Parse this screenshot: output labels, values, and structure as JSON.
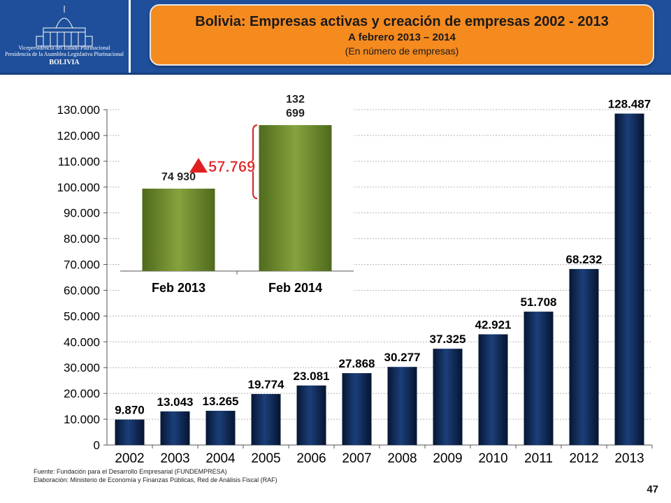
{
  "header": {
    "logo_line1": "Vicepresidencia del Estado Plurinacional",
    "logo_line2": "Presidencia de la Asamblea Legislativa Plurinacional",
    "logo_country": "BOLIVIA",
    "title": "Bolivia: Empresas activas y creación de empresas 2002 - 2013",
    "subtitle": "A febrero 2013 – 2014",
    "unit": "(En número de empresas)"
  },
  "chart_data": [
    {
      "type": "bar",
      "categories": [
        "2002",
        "2003",
        "2004",
        "2005",
        "2006",
        "2007",
        "2008",
        "2009",
        "2010",
        "2011",
        "2012",
        "2013"
      ],
      "values": [
        9870,
        13043,
        13265,
        19774,
        23081,
        27868,
        30277,
        37325,
        42921,
        51708,
        68232,
        128487
      ],
      "labels": [
        "9.870",
        "13.043",
        "13.265",
        "19.774",
        "23.081",
        "27.868",
        "30.277",
        "37.325",
        "42.921",
        "51.708",
        "68.232",
        "128.487"
      ],
      "ylim": [
        0,
        130000
      ],
      "yticks": [
        "0",
        "10.000",
        "20.000",
        "30.000",
        "40.000",
        "50.000",
        "60.000",
        "70.000",
        "80.000",
        "90.000",
        "100.000",
        "110.000",
        "120.000",
        "130.000"
      ],
      "grid": true,
      "color": "#0e2a5a"
    },
    {
      "type": "bar",
      "categories": [
        "Feb 2013",
        "Feb 2014"
      ],
      "values": [
        74930,
        132699
      ],
      "labels": [
        "74 930",
        "132 699"
      ],
      "label_lines": [
        [
          "74 930"
        ],
        [
          "132",
          "699"
        ]
      ],
      "color": "#6f8a2c",
      "annotation": {
        "text": "57.769",
        "color": "#e02020"
      }
    }
  ],
  "footer": {
    "source": "Fuente: Fundación para el Desarrollo Empresarial (FUNDEMPRESA)",
    "elaboration": "Elaboración: Ministerio de Economía y Finanzas Públicas, Red de Análisis Fiscal (RAF)",
    "page": "47"
  }
}
